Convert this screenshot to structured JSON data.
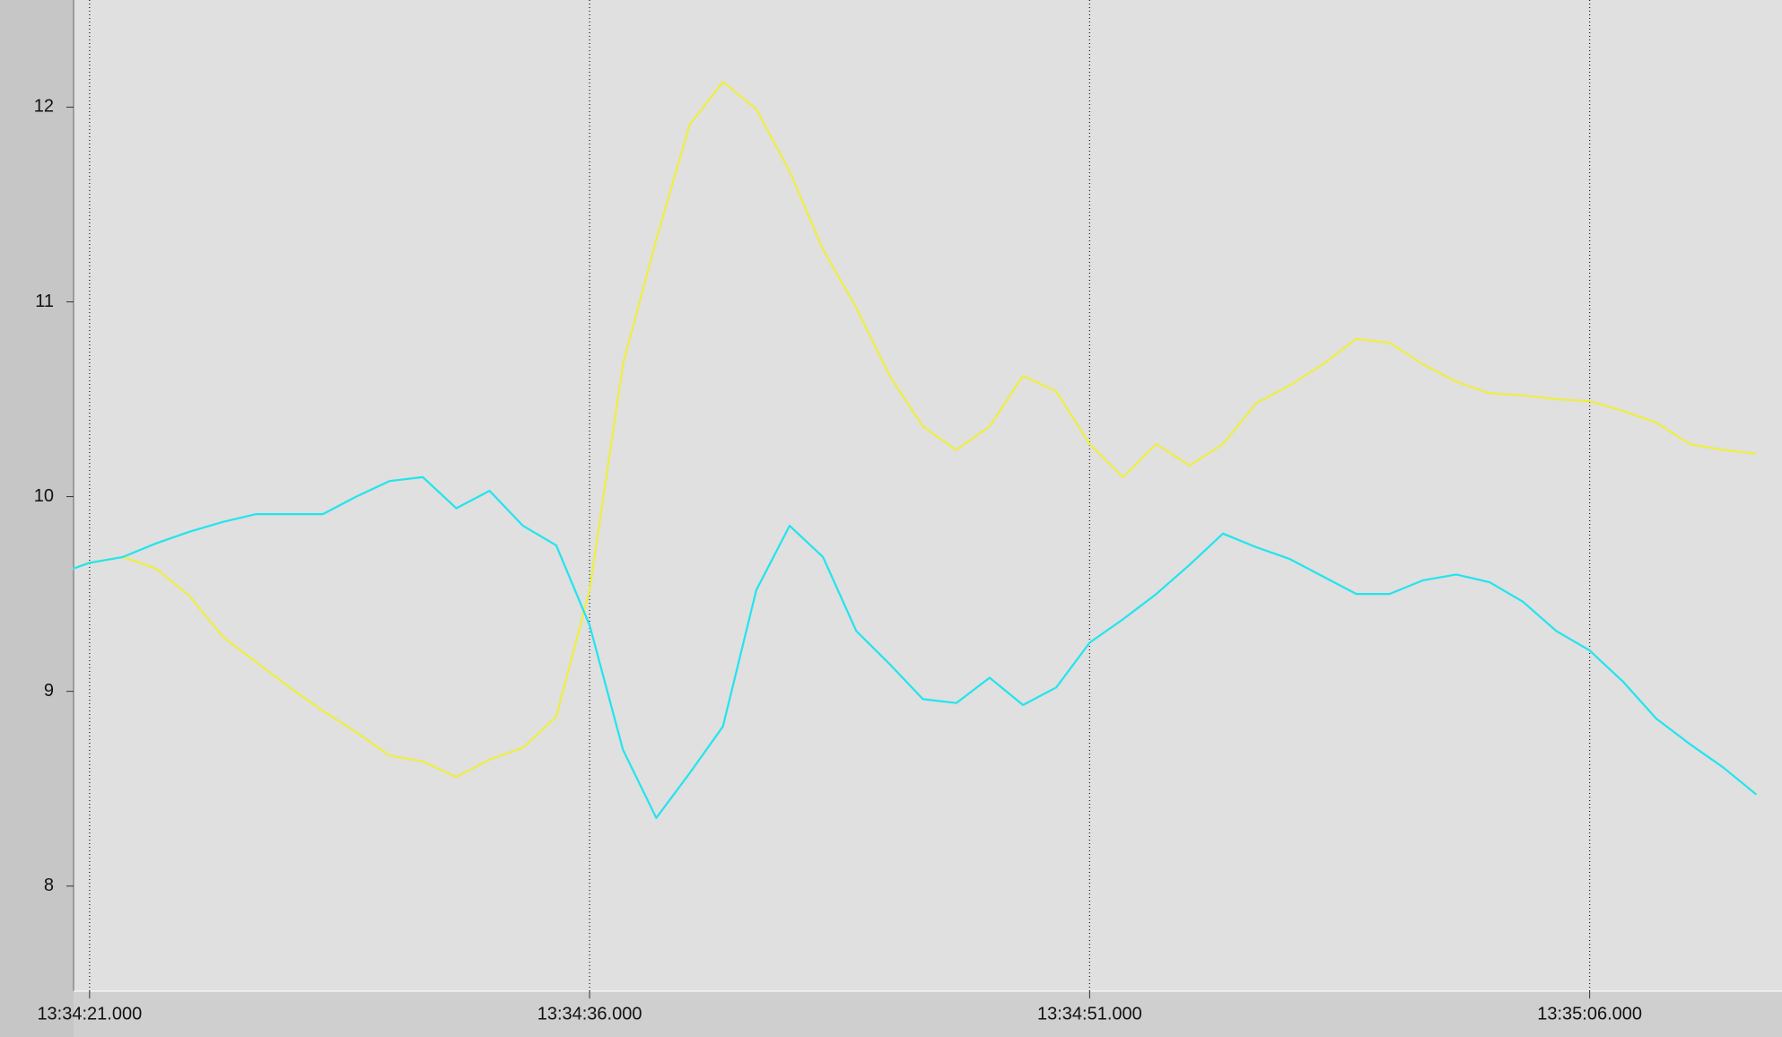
{
  "chart_data": {
    "type": "line",
    "x": [
      48860.5,
      48861,
      48862,
      48863,
      48864,
      48865,
      48866,
      48867,
      48868,
      48869,
      48870,
      48871,
      48872,
      48873,
      48874,
      48875,
      48876,
      48877,
      48878,
      48879,
      48880,
      48881,
      48882,
      48883,
      48884,
      48885,
      48886,
      48887,
      48888,
      48889,
      48890,
      48891,
      48892,
      48893,
      48894,
      48895,
      48896,
      48897,
      48898,
      48899,
      48900,
      48901,
      48902,
      48903,
      48904,
      48905,
      48906,
      48907,
      48908,
      48909,
      48910,
      48911
    ],
    "series": [
      {
        "color": "#eeee44",
        "values": [
          9.63,
          9.66,
          9.69,
          9.63,
          9.49,
          9.28,
          9.15,
          9.02,
          8.9,
          8.79,
          8.67,
          8.64,
          8.56,
          8.65,
          8.71,
          8.87,
          9.52,
          10.68,
          11.32,
          11.91,
          12.13,
          11.99,
          11.67,
          11.27,
          10.97,
          10.62,
          10.36,
          10.24,
          10.36,
          10.62,
          10.54,
          10.27,
          10.1,
          10.27,
          10.16,
          10.27,
          10.48,
          10.57,
          10.68,
          10.81,
          10.79,
          10.68,
          10.59,
          10.53,
          10.52,
          10.5,
          10.49,
          10.44,
          10.38,
          10.27,
          10.24,
          10.22
        ]
      },
      {
        "color": "#22e4ee",
        "values": [
          9.63,
          9.66,
          9.69,
          9.76,
          9.82,
          9.87,
          9.91,
          9.91,
          9.91,
          10.0,
          10.08,
          10.1,
          9.94,
          10.03,
          9.85,
          9.75,
          9.34,
          8.7,
          8.35,
          8.58,
          8.82,
          9.52,
          9.85,
          9.69,
          9.31,
          9.14,
          8.96,
          8.94,
          9.07,
          8.93,
          9.02,
          9.25,
          9.37,
          9.5,
          9.65,
          9.81,
          9.74,
          9.68,
          9.59,
          9.5,
          9.5,
          9.57,
          9.6,
          9.56,
          9.46,
          9.31,
          9.21,
          9.05,
          8.86,
          8.73,
          8.61,
          8.47
        ]
      }
    ],
    "xlim": [
      48860.52,
      48911.77
    ],
    "xticks": [
      {
        "value": 48861,
        "label": "13:34:21.000"
      },
      {
        "value": 48876,
        "label": "13:34:36.000"
      },
      {
        "value": 48891,
        "label": "13:34:51.000"
      },
      {
        "value": 48906,
        "label": "13:35:06.000"
      }
    ],
    "ylim": [
      7.46,
      12.55
    ],
    "yticks": [
      8,
      9,
      10,
      11,
      12
    ],
    "grid": true
  }
}
